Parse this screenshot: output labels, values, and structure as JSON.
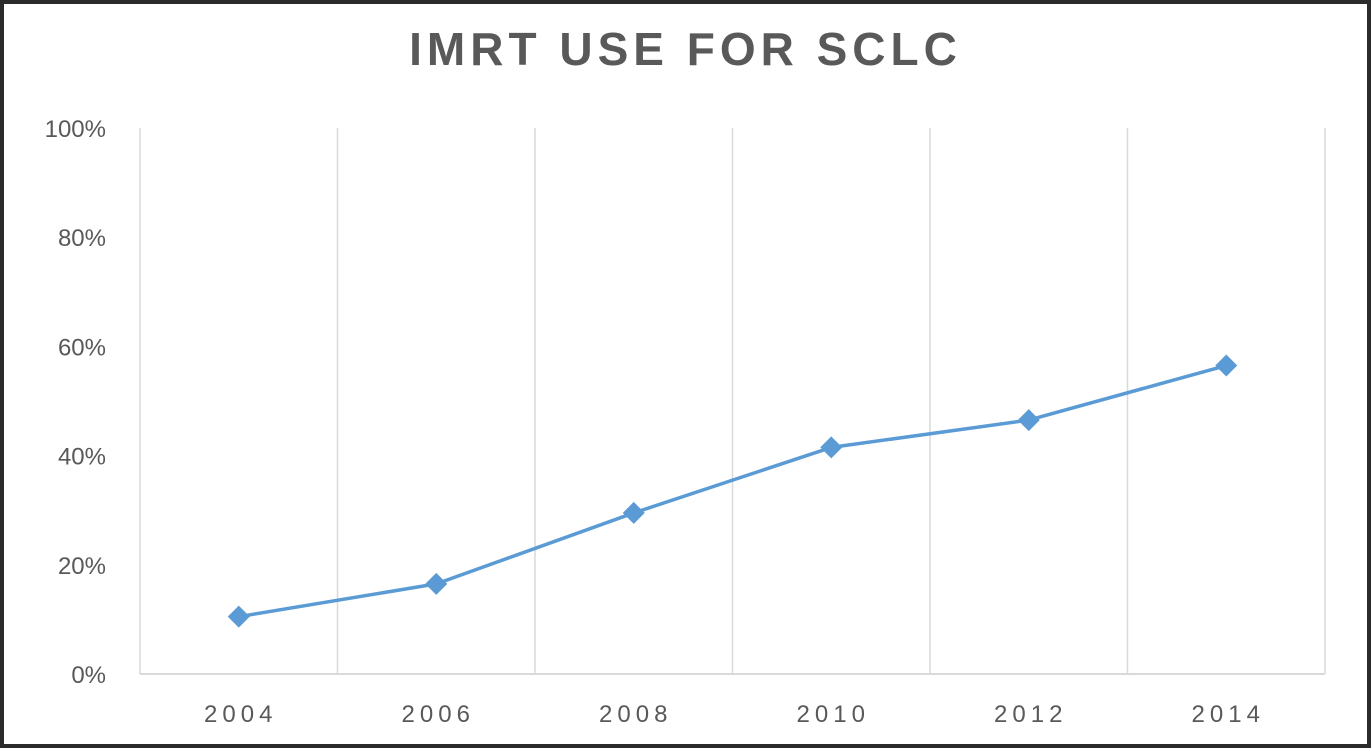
{
  "chart_data": {
    "type": "line",
    "title": "IMRT USE FOR SCLC",
    "xlabel": "",
    "ylabel": "",
    "categories": [
      "2004",
      "2006",
      "2008",
      "2010",
      "2012",
      "2014"
    ],
    "series": [
      {
        "values": [
          10.5,
          16.5,
          29.5,
          41.5,
          46.5,
          56.5
        ]
      }
    ],
    "ylim": [
      0,
      100
    ],
    "y_ticks": [
      "0%",
      "20%",
      "40%",
      "60%",
      "80%",
      "100%"
    ],
    "grid": "vertical",
    "legend": "none",
    "marker": "diamond",
    "colors": {
      "series": "#5b9bd5",
      "grid": "#d9d9d9",
      "text": "#595959"
    }
  }
}
